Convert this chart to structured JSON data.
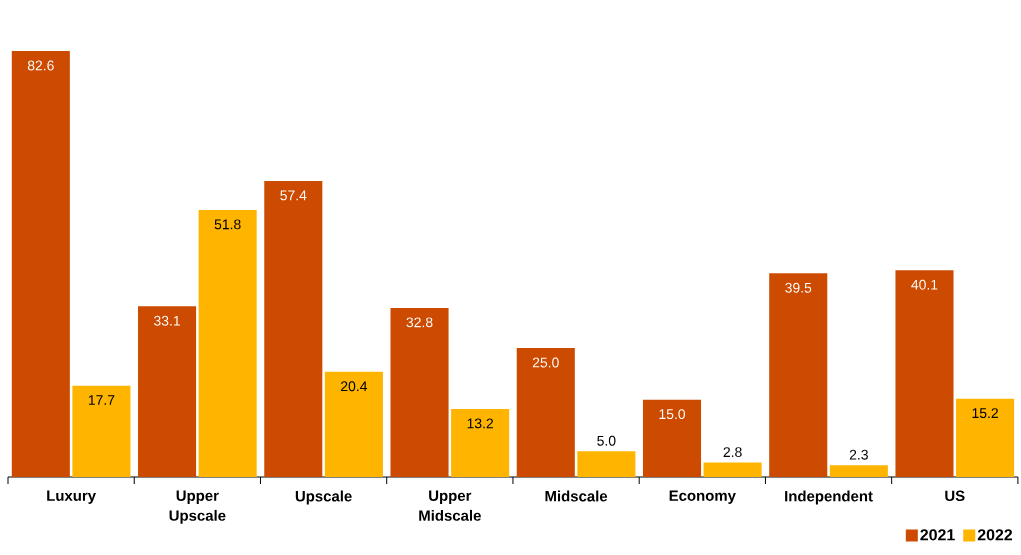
{
  "chart_data": {
    "type": "bar",
    "categories": [
      "Luxury",
      "Upper Upscale",
      "Upscale",
      "Upper Midscale",
      "Midscale",
      "Economy",
      "Independent",
      "US"
    ],
    "series": [
      {
        "name": "2021",
        "color": "#cc4b00",
        "values": [
          82.6,
          33.1,
          57.4,
          32.8,
          25.0,
          15.0,
          39.5,
          40.1
        ],
        "value_labels": [
          "82.6",
          "33.1",
          "57.4",
          "32.8",
          "25.0",
          "15.0",
          "39.5",
          "40.1"
        ]
      },
      {
        "name": "2022",
        "color": "#ffb400",
        "values": [
          17.7,
          51.8,
          20.4,
          13.2,
          5.0,
          2.8,
          2.3,
          15.2
        ],
        "value_labels": [
          "17.7",
          "51.8",
          "20.4",
          "13.2",
          "5.0",
          "2.8",
          "2.3",
          "15.2"
        ]
      }
    ],
    "legend": "bottom right"
  }
}
